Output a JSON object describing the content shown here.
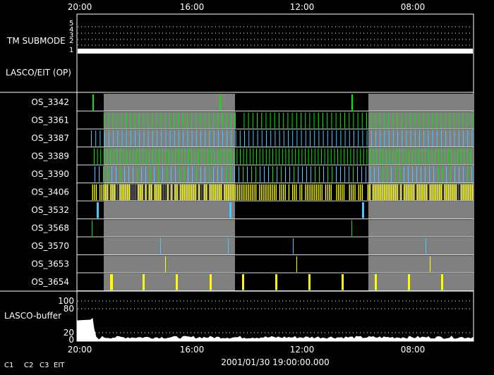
{
  "time_axis": {
    "ticks": [
      "20:00",
      "16:00",
      "12:00",
      "08:00"
    ],
    "footer_timestamp": "2001/01/30 19:00:00.000"
  },
  "tm_submode": {
    "label": "TM SUBMODE",
    "levels": [
      "5",
      "4",
      "3",
      "2",
      "1"
    ]
  },
  "lasco_eit": {
    "label": "LASCO/EIT (OP)"
  },
  "rows": [
    {
      "id": "OS_3342",
      "label": "OS_3342"
    },
    {
      "id": "OS_3361",
      "label": "OS_3361"
    },
    {
      "id": "OS_3387",
      "label": "OS_3387"
    },
    {
      "id": "OS_3389",
      "label": "OS_3389"
    },
    {
      "id": "OS_3390",
      "label": "OS_3390"
    },
    {
      "id": "OS_3406",
      "label": "OS_3406"
    },
    {
      "id": "OS_3532",
      "label": "OS_3532"
    },
    {
      "id": "OS_3568",
      "label": "OS_3568"
    },
    {
      "id": "OS_3570",
      "label": "OS_3570"
    },
    {
      "id": "OS_3653",
      "label": "OS_3653"
    },
    {
      "id": "OS_3654",
      "label": "OS_3654"
    }
  ],
  "buffer": {
    "label": "LASCO-buffer",
    "ticks": [
      "100",
      "80",
      "20",
      "0"
    ]
  },
  "legend": [
    {
      "text": "C1",
      "color": "#ff3030"
    },
    {
      "text": "C2",
      "color": "#30ff30"
    },
    {
      "text": "C3",
      "color": "#ffffff"
    },
    {
      "text": "EIT",
      "color": "#ffffff"
    }
  ],
  "colors": {
    "background": "#000000",
    "shading": "#808080",
    "c2": "#00ee00",
    "c3": "#44c8ff",
    "eit": "#ffff00"
  }
}
